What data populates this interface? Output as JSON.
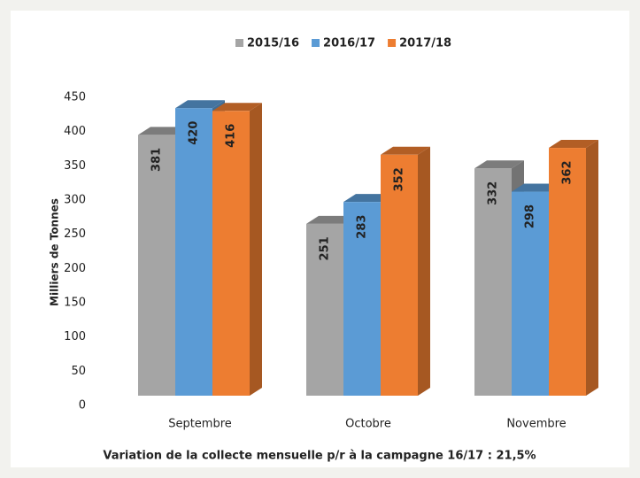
{
  "chart_data": {
    "type": "bar3d",
    "categories": [
      "Septembre",
      "Octobre",
      "Novembre"
    ],
    "series": [
      {
        "name": "2015/16",
        "color": "#a5a5a5",
        "values": [
          381,
          251,
          332
        ]
      },
      {
        "name": "2016/17",
        "color": "#5b9bd5",
        "values": [
          420,
          283,
          298
        ]
      },
      {
        "name": "2017/18",
        "color": "#ed7d31",
        "values": [
          416,
          352,
          362
        ]
      }
    ],
    "ylabel": "Milliers de Tonnes",
    "ylim": [
      0,
      450
    ],
    "yticks": [
      0,
      50,
      100,
      150,
      200,
      250,
      300,
      350,
      400,
      450
    ],
    "caption": "Variation de la collecte mensuelle p/r à la campagne 16/17 : 21,5%",
    "legend": "top",
    "grid": false
  }
}
